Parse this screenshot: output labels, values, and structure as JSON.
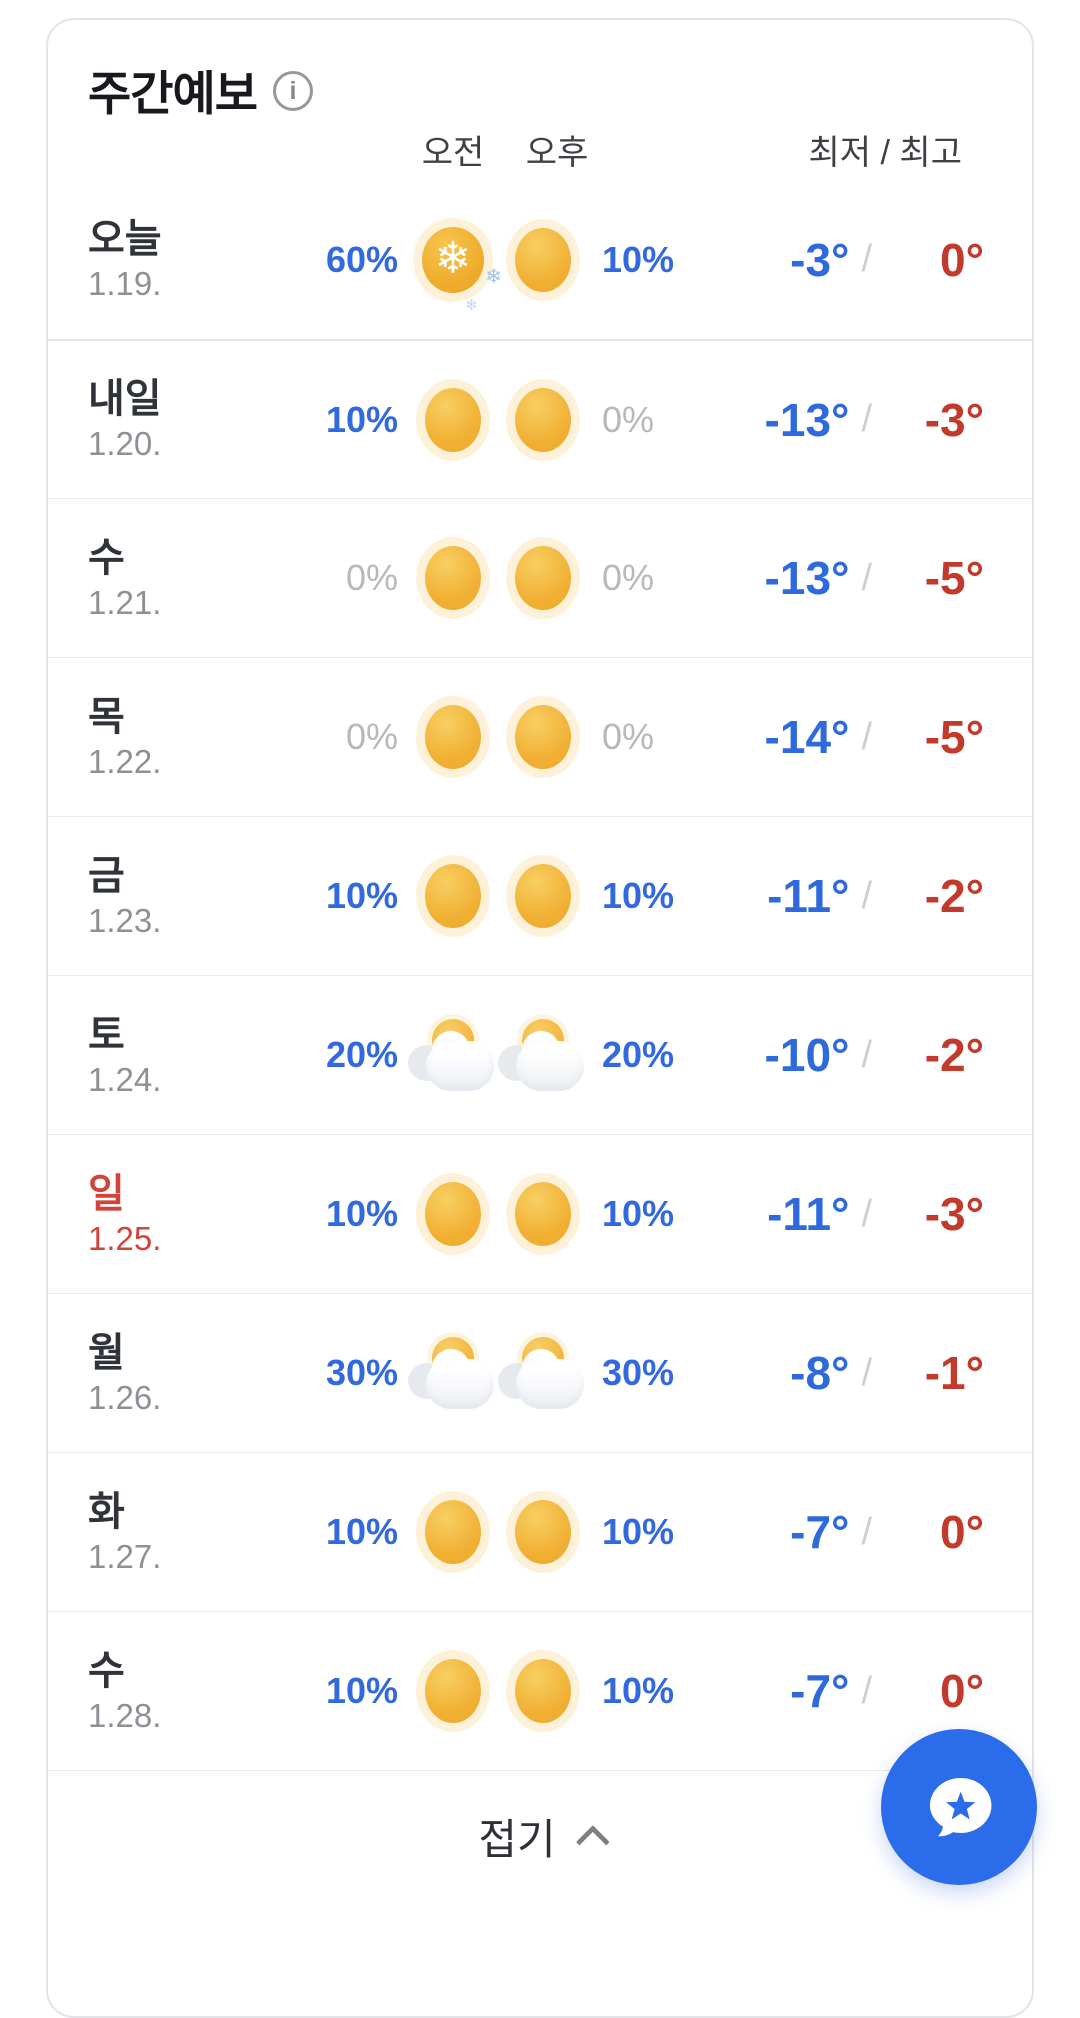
{
  "card": {
    "title": "주간예보",
    "columns": {
      "am": "오전",
      "pm": "오후",
      "minmax": "최저 / 최고"
    },
    "temp_separator": "/",
    "rows": [
      {
        "day": "오늘",
        "date": "1.19.",
        "holiday": false,
        "am_pop": "60%",
        "am_icon": "snow",
        "pm_icon": "sun",
        "pm_pop": "10%",
        "min": "-3°",
        "max": "0°"
      },
      {
        "day": "내일",
        "date": "1.20.",
        "holiday": false,
        "am_pop": "10%",
        "am_icon": "sun",
        "pm_icon": "sun",
        "pm_pop": "0%",
        "min": "-13°",
        "max": "-3°"
      },
      {
        "day": "수",
        "date": "1.21.",
        "holiday": false,
        "am_pop": "0%",
        "am_icon": "sun",
        "pm_icon": "sun",
        "pm_pop": "0%",
        "min": "-13°",
        "max": "-5°"
      },
      {
        "day": "목",
        "date": "1.22.",
        "holiday": false,
        "am_pop": "0%",
        "am_icon": "sun",
        "pm_icon": "sun",
        "pm_pop": "0%",
        "min": "-14°",
        "max": "-5°"
      },
      {
        "day": "금",
        "date": "1.23.",
        "holiday": false,
        "am_pop": "10%",
        "am_icon": "sun",
        "pm_icon": "sun",
        "pm_pop": "10%",
        "min": "-11°",
        "max": "-2°"
      },
      {
        "day": "토",
        "date": "1.24.",
        "holiday": false,
        "am_pop": "20%",
        "am_icon": "sun-cloud",
        "pm_icon": "sun-cloud",
        "pm_pop": "20%",
        "min": "-10°",
        "max": "-2°"
      },
      {
        "day": "일",
        "date": "1.25.",
        "holiday": true,
        "am_pop": "10%",
        "am_icon": "sun",
        "pm_icon": "sun",
        "pm_pop": "10%",
        "min": "-11°",
        "max": "-3°"
      },
      {
        "day": "월",
        "date": "1.26.",
        "holiday": false,
        "am_pop": "30%",
        "am_icon": "sun-cloud",
        "pm_icon": "sun-cloud",
        "pm_pop": "30%",
        "min": "-8°",
        "max": "-1°"
      },
      {
        "day": "화",
        "date": "1.27.",
        "holiday": false,
        "am_pop": "10%",
        "am_icon": "sun",
        "pm_icon": "sun",
        "pm_pop": "10%",
        "min": "-7°",
        "max": "0°"
      },
      {
        "day": "수",
        "date": "1.28.",
        "holiday": false,
        "am_pop": "10%",
        "am_icon": "sun",
        "pm_icon": "sun",
        "pm_pop": "10%",
        "min": "-7°",
        "max": "0°"
      }
    ],
    "collapse_label": "접기"
  },
  "glyphs": {
    "snowflake": "❄",
    "info": "i"
  },
  "colors": {
    "pop_blue": "#3269de",
    "pop_muted_gray": "#b6b8bc",
    "temp_min_blue": "#2f6add",
    "temp_max_red": "#c13a2b",
    "holiday_red": "#d2443a",
    "fab_blue": "#2b6ceb",
    "sun_yellow": "#f1b034"
  }
}
